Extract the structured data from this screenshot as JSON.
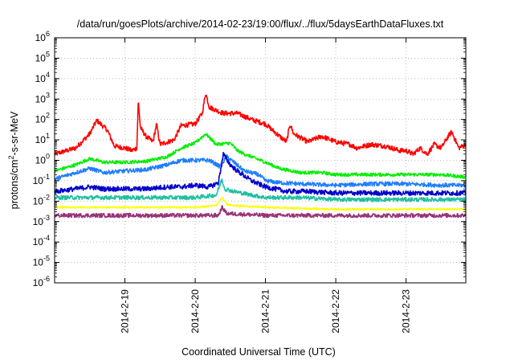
{
  "chart_data": {
    "type": "line",
    "title": "/data/run/goesPlots/archive/2014-02-23/19:00/flux/../flux/5daysEarthDataFluxes.txt",
    "xlabel": "Coordinated Universal Time (UTC)",
    "ylabel": "protons/cm²-s-sr-MeV",
    "ylabel_parts": {
      "base": "protons/cm",
      "sup": "2",
      "rest": "-s-sr-MeV"
    },
    "yscale": "log",
    "ylim": [
      1e-06,
      1000000.0
    ],
    "xlim_days": [
      18.0,
      23.85
    ],
    "grid": true,
    "x_ticks": [
      {
        "value": 19,
        "label": "2014-2-19"
      },
      {
        "value": 20,
        "label": "2014-2-20"
      },
      {
        "value": 21,
        "label": "2014-2-21"
      },
      {
        "value": 22,
        "label": "2014-2-22"
      },
      {
        "value": 23,
        "label": "2014-2-23"
      }
    ],
    "y_ticks": [
      {
        "exp": -6,
        "label": "10",
        "sup": "-6"
      },
      {
        "exp": -5,
        "label": "10",
        "sup": "-5"
      },
      {
        "exp": -4,
        "label": "10",
        "sup": "-4"
      },
      {
        "exp": -3,
        "label": "10",
        "sup": "-3"
      },
      {
        "exp": -2,
        "label": "10",
        "sup": "-2"
      },
      {
        "exp": -1,
        "label": "10",
        "sup": "-1"
      },
      {
        "exp": 0,
        "label": "10",
        "sup": "0"
      },
      {
        "exp": 1,
        "label": "10",
        "sup": "1"
      },
      {
        "exp": 2,
        "label": "10",
        "sup": "2"
      },
      {
        "exp": 3,
        "label": "10",
        "sup": "3"
      },
      {
        "exp": 4,
        "label": "10",
        "sup": "4"
      },
      {
        "exp": 5,
        "label": "10",
        "sup": "5"
      },
      {
        "exp": 6,
        "label": "10",
        "sup": "6"
      }
    ],
    "series": [
      {
        "color": "#ff0000",
        "noise": 0.12,
        "points": [
          [
            18.0,
            2
          ],
          [
            18.3,
            4
          ],
          [
            18.5,
            20
          ],
          [
            18.6,
            90
          ],
          [
            18.75,
            30
          ],
          [
            18.85,
            5
          ],
          [
            19.0,
            4
          ],
          [
            19.1,
            3
          ],
          [
            19.17,
            4
          ],
          [
            19.19,
            900
          ],
          [
            19.22,
            40
          ],
          [
            19.3,
            15
          ],
          [
            19.4,
            8
          ],
          [
            19.45,
            60
          ],
          [
            19.5,
            6
          ],
          [
            19.7,
            10
          ],
          [
            19.8,
            50
          ],
          [
            20.0,
            60
          ],
          [
            20.1,
            200
          ],
          [
            20.15,
            2000
          ],
          [
            20.2,
            400
          ],
          [
            20.4,
            200
          ],
          [
            20.6,
            200
          ],
          [
            20.8,
            100
          ],
          [
            21.0,
            60
          ],
          [
            21.2,
            15
          ],
          [
            21.3,
            8
          ],
          [
            21.35,
            60
          ],
          [
            21.4,
            20
          ],
          [
            21.6,
            8
          ],
          [
            21.8,
            15
          ],
          [
            22.0,
            8
          ],
          [
            22.2,
            6
          ],
          [
            22.3,
            4
          ],
          [
            22.5,
            6
          ],
          [
            22.7,
            5
          ],
          [
            22.8,
            4
          ],
          [
            22.9,
            3
          ],
          [
            23.0,
            3
          ],
          [
            23.1,
            2
          ],
          [
            23.2,
            4
          ],
          [
            23.3,
            2
          ],
          [
            23.4,
            6
          ],
          [
            23.5,
            4
          ],
          [
            23.6,
            15
          ],
          [
            23.65,
            25
          ],
          [
            23.7,
            10
          ],
          [
            23.75,
            4
          ],
          [
            23.85,
            6
          ]
        ]
      },
      {
        "color": "#00ee00",
        "noise": 0.08,
        "points": [
          [
            18.0,
            0.3
          ],
          [
            18.3,
            0.6
          ],
          [
            18.5,
            1.2
          ],
          [
            18.7,
            0.8
          ],
          [
            19.0,
            0.8
          ],
          [
            19.3,
            0.9
          ],
          [
            19.6,
            1.5
          ],
          [
            19.8,
            4
          ],
          [
            20.0,
            7
          ],
          [
            20.15,
            20
          ],
          [
            20.3,
            6
          ],
          [
            20.5,
            7
          ],
          [
            20.6,
            3
          ],
          [
            20.7,
            2
          ],
          [
            20.8,
            1.5
          ],
          [
            21.0,
            0.8
          ],
          [
            21.2,
            0.4
          ],
          [
            21.5,
            0.25
          ],
          [
            21.8,
            0.25
          ],
          [
            22.0,
            0.2
          ],
          [
            22.5,
            0.2
          ],
          [
            23.0,
            0.2
          ],
          [
            23.5,
            0.2
          ],
          [
            23.85,
            0.15
          ]
        ]
      },
      {
        "color": "#1e7fff",
        "noise": 0.1,
        "points": [
          [
            18.0,
            0.12
          ],
          [
            18.3,
            0.25
          ],
          [
            18.5,
            0.4
          ],
          [
            18.7,
            0.25
          ],
          [
            19.0,
            0.3
          ],
          [
            19.3,
            0.35
          ],
          [
            19.6,
            0.6
          ],
          [
            19.8,
            1.0
          ],
          [
            20.0,
            1.0
          ],
          [
            20.2,
            1.0
          ],
          [
            20.35,
            0.5
          ],
          [
            20.45,
            1.5
          ],
          [
            20.55,
            0.8
          ],
          [
            20.7,
            0.3
          ],
          [
            20.9,
            0.2
          ],
          [
            21.0,
            0.1
          ],
          [
            21.2,
            0.08
          ],
          [
            21.5,
            0.07
          ],
          [
            22.0,
            0.06
          ],
          [
            22.5,
            0.07
          ],
          [
            23.0,
            0.07
          ],
          [
            23.5,
            0.06
          ],
          [
            23.85,
            0.06
          ]
        ]
      },
      {
        "color": "#0000cc",
        "noise": 0.12,
        "points": [
          [
            18.0,
            0.03
          ],
          [
            18.3,
            0.04
          ],
          [
            18.5,
            0.05
          ],
          [
            18.7,
            0.04
          ],
          [
            19.0,
            0.04
          ],
          [
            19.3,
            0.04
          ],
          [
            19.6,
            0.05
          ],
          [
            19.8,
            0.05
          ],
          [
            20.0,
            0.06
          ],
          [
            20.2,
            0.05
          ],
          [
            20.33,
            0.08
          ],
          [
            20.4,
            2.0
          ],
          [
            20.5,
            0.6
          ],
          [
            20.6,
            0.3
          ],
          [
            20.8,
            0.1
          ],
          [
            21.0,
            0.05
          ],
          [
            21.3,
            0.03
          ],
          [
            21.6,
            0.03
          ],
          [
            22.0,
            0.025
          ],
          [
            22.5,
            0.025
          ],
          [
            23.0,
            0.025
          ],
          [
            23.5,
            0.025
          ],
          [
            23.85,
            0.025
          ]
        ]
      },
      {
        "color": "#20c0a0",
        "noise": 0.1,
        "points": [
          [
            18.0,
            0.015
          ],
          [
            18.5,
            0.015
          ],
          [
            19.0,
            0.015
          ],
          [
            19.5,
            0.015
          ],
          [
            20.0,
            0.015
          ],
          [
            20.3,
            0.02
          ],
          [
            20.38,
            0.12
          ],
          [
            20.42,
            0.04
          ],
          [
            20.55,
            0.03
          ],
          [
            20.8,
            0.02
          ],
          [
            21.0,
            0.015
          ],
          [
            21.5,
            0.015
          ],
          [
            22.0,
            0.012
          ],
          [
            23.0,
            0.012
          ],
          [
            23.85,
            0.012
          ]
        ]
      },
      {
        "color": "#ffff00",
        "noise": 0.04,
        "points": [
          [
            18.0,
            0.005
          ],
          [
            19.0,
            0.005
          ],
          [
            20.0,
            0.005
          ],
          [
            20.3,
            0.006
          ],
          [
            20.38,
            0.015
          ],
          [
            20.45,
            0.007
          ],
          [
            20.6,
            0.006
          ],
          [
            21.0,
            0.005
          ],
          [
            22.0,
            0.004
          ],
          [
            23.0,
            0.004
          ],
          [
            23.85,
            0.004
          ]
        ]
      },
      {
        "color": "#993377",
        "noise": 0.1,
        "points": [
          [
            18.0,
            0.002
          ],
          [
            19.0,
            0.002
          ],
          [
            20.0,
            0.002
          ],
          [
            20.33,
            0.002
          ],
          [
            20.38,
            0.005
          ],
          [
            20.45,
            0.0025
          ],
          [
            21.0,
            0.002
          ],
          [
            22.0,
            0.002
          ],
          [
            23.0,
            0.002
          ],
          [
            23.85,
            0.002
          ]
        ]
      }
    ]
  }
}
